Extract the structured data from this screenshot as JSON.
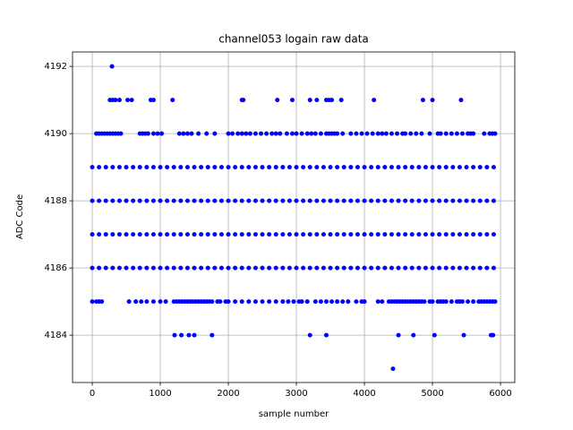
{
  "chart_data": {
    "type": "scatter",
    "title": "channel053 logain raw data",
    "x_label": "sample number",
    "y_label": "ADC Code",
    "color": "#0000ff",
    "grid": true,
    "xlim": [
      -290,
      6210
    ],
    "ylim": [
      4182.59,
      4192.43
    ],
    "xticks": [
      0,
      1000,
      2000,
      3000,
      4000,
      5000,
      6000
    ],
    "yticks": [
      4184,
      4186,
      4188,
      4190,
      4192
    ],
    "x": [
      290,
      260,
      300,
      340,
      400,
      520,
      580,
      860,
      900,
      1180,
      2200,
      2220,
      2720,
      2940,
      3200,
      3300,
      3440,
      3480,
      3520,
      3660,
      4140,
      4860,
      5000,
      5420,
      60,
      100,
      140,
      180,
      220,
      260,
      300,
      340,
      380,
      420,
      700,
      740,
      780,
      820,
      900,
      960,
      1020,
      1280,
      1340,
      1400,
      1460,
      1560,
      1680,
      1800,
      2000,
      2060,
      2140,
      2200,
      2260,
      2320,
      2400,
      2480,
      2560,
      2640,
      2700,
      2760,
      2860,
      2940,
      3000,
      3080,
      3160,
      3220,
      3280,
      3360,
      3440,
      3480,
      3520,
      3560,
      3600,
      3680,
      3800,
      3880,
      3960,
      4040,
      4120,
      4200,
      4260,
      4320,
      4400,
      4480,
      4560,
      4600,
      4680,
      4760,
      4840,
      4960,
      5080,
      5120,
      5200,
      5280,
      5360,
      5440,
      5520,
      5560,
      5600,
      5760,
      5840,
      5880,
      5920,
      0,
      100,
      200,
      300,
      400,
      500,
      600,
      700,
      800,
      900,
      1000,
      1100,
      1200,
      1300,
      1400,
      1500,
      1600,
      1700,
      1800,
      1900,
      2000,
      2100,
      2200,
      2300,
      2400,
      2500,
      2600,
      2700,
      2800,
      2900,
      3000,
      3100,
      3200,
      3300,
      3400,
      3500,
      3600,
      3700,
      3800,
      3900,
      4000,
      4100,
      4200,
      4300,
      4400,
      4500,
      4600,
      4700,
      4800,
      4900,
      5000,
      5100,
      5200,
      5300,
      5400,
      5500,
      5600,
      5700,
      5800,
      5900,
      0,
      100,
      200,
      300,
      400,
      500,
      600,
      700,
      800,
      900,
      1000,
      1100,
      1200,
      1300,
      1400,
      1500,
      1600,
      1700,
      1800,
      1900,
      2000,
      2100,
      2200,
      2300,
      2400,
      2500,
      2600,
      2700,
      2800,
      2900,
      3000,
      3100,
      3200,
      3300,
      3400,
      3500,
      3600,
      3700,
      3800,
      3900,
      4000,
      4100,
      4200,
      4300,
      4400,
      4500,
      4600,
      4700,
      4800,
      4900,
      5000,
      5100,
      5200,
      5300,
      5400,
      5500,
      5600,
      5700,
      5800,
      5900,
      0,
      100,
      200,
      300,
      400,
      500,
      600,
      700,
      800,
      900,
      1000,
      1100,
      1200,
      1300,
      1400,
      1500,
      1600,
      1700,
      1800,
      1900,
      2000,
      2100,
      2200,
      2300,
      2400,
      2500,
      2600,
      2700,
      2800,
      2900,
      3000,
      3100,
      3200,
      3300,
      3400,
      3500,
      3600,
      3700,
      3800,
      3900,
      4000,
      4100,
      4200,
      4300,
      4400,
      4500,
      4600,
      4700,
      4800,
      4900,
      5000,
      5100,
      5200,
      5300,
      5400,
      5500,
      5600,
      5700,
      5800,
      5900,
      0,
      100,
      200,
      300,
      400,
      500,
      600,
      700,
      800,
      900,
      1000,
      1100,
      1200,
      1300,
      1400,
      1500,
      1600,
      1700,
      1800,
      1900,
      2000,
      2100,
      2200,
      2300,
      2400,
      2500,
      2600,
      2700,
      2800,
      2900,
      3000,
      3100,
      3200,
      3300,
      3400,
      3500,
      3600,
      3700,
      3800,
      3900,
      4000,
      4100,
      4200,
      4300,
      4400,
      4500,
      4600,
      4700,
      4800,
      4900,
      5000,
      5100,
      5200,
      5300,
      5400,
      5500,
      5600,
      5700,
      5800,
      5900,
      0,
      60,
      100,
      140,
      540,
      640,
      720,
      800,
      900,
      1000,
      1080,
      1200,
      1240,
      1280,
      1320,
      1360,
      1400,
      1440,
      1480,
      1520,
      1560,
      1600,
      1640,
      1680,
      1720,
      1760,
      1840,
      1880,
      1960,
      2000,
      2100,
      2200,
      2300,
      2400,
      2500,
      2600,
      2700,
      2800,
      2880,
      2960,
      3040,
      3080,
      3160,
      3280,
      3360,
      3440,
      3520,
      3600,
      3680,
      3760,
      3880,
      3960,
      4000,
      4200,
      4260,
      4360,
      4400,
      4440,
      4480,
      4520,
      4560,
      4600,
      4640,
      4680,
      4720,
      4760,
      4800,
      4840,
      4880,
      4960,
      5000,
      5080,
      5120,
      5160,
      5200,
      5280,
      5360,
      5400,
      5440,
      5520,
      5600,
      5680,
      5720,
      5760,
      5800,
      5840,
      5880,
      5920,
      1210,
      1310,
      1420,
      1500,
      1760,
      3200,
      3440,
      4500,
      4720,
      5030,
      5460,
      5860,
      5890,
      4420
    ],
    "values": [
      4192,
      4191,
      4191,
      4191,
      4191,
      4191,
      4191,
      4191,
      4191,
      4191,
      4191,
      4191,
      4191,
      4191,
      4191,
      4191,
      4191,
      4191,
      4191,
      4191,
      4191,
      4191,
      4191,
      4191,
      4190,
      4190,
      4190,
      4190,
      4190,
      4190,
      4190,
      4190,
      4190,
      4190,
      4190,
      4190,
      4190,
      4190,
      4190,
      4190,
      4190,
      4190,
      4190,
      4190,
      4190,
      4190,
      4190,
      4190,
      4190,
      4190,
      4190,
      4190,
      4190,
      4190,
      4190,
      4190,
      4190,
      4190,
      4190,
      4190,
      4190,
      4190,
      4190,
      4190,
      4190,
      4190,
      4190,
      4190,
      4190,
      4190,
      4190,
      4190,
      4190,
      4190,
      4190,
      4190,
      4190,
      4190,
      4190,
      4190,
      4190,
      4190,
      4190,
      4190,
      4190,
      4190,
      4190,
      4190,
      4190,
      4190,
      4190,
      4190,
      4190,
      4190,
      4190,
      4190,
      4190,
      4190,
      4190,
      4190,
      4190,
      4190,
      4190,
      4189,
      4189,
      4189,
      4189,
      4189,
      4189,
      4189,
      4189,
      4189,
      4189,
      4189,
      4189,
      4189,
      4189,
      4189,
      4189,
      4189,
      4189,
      4189,
      4189,
      4189,
      4189,
      4189,
      4189,
      4189,
      4189,
      4189,
      4189,
      4189,
      4189,
      4189,
      4189,
      4189,
      4189,
      4189,
      4189,
      4189,
      4189,
      4189,
      4189,
      4189,
      4189,
      4189,
      4189,
      4189,
      4189,
      4189,
      4189,
      4189,
      4189,
      4189,
      4189,
      4189,
      4189,
      4189,
      4189,
      4189,
      4189,
      4189,
      4189,
      4188,
      4188,
      4188,
      4188,
      4188,
      4188,
      4188,
      4188,
      4188,
      4188,
      4188,
      4188,
      4188,
      4188,
      4188,
      4188,
      4188,
      4188,
      4188,
      4188,
      4188,
      4188,
      4188,
      4188,
      4188,
      4188,
      4188,
      4188,
      4188,
      4188,
      4188,
      4188,
      4188,
      4188,
      4188,
      4188,
      4188,
      4188,
      4188,
      4188,
      4188,
      4188,
      4188,
      4188,
      4188,
      4188,
      4188,
      4188,
      4188,
      4188,
      4188,
      4188,
      4188,
      4188,
      4188,
      4188,
      4188,
      4188,
      4188,
      4188,
      4187,
      4187,
      4187,
      4187,
      4187,
      4187,
      4187,
      4187,
      4187,
      4187,
      4187,
      4187,
      4187,
      4187,
      4187,
      4187,
      4187,
      4187,
      4187,
      4187,
      4187,
      4187,
      4187,
      4187,
      4187,
      4187,
      4187,
      4187,
      4187,
      4187,
      4187,
      4187,
      4187,
      4187,
      4187,
      4187,
      4187,
      4187,
      4187,
      4187,
      4187,
      4187,
      4187,
      4187,
      4187,
      4187,
      4187,
      4187,
      4187,
      4187,
      4187,
      4187,
      4187,
      4187,
      4187,
      4187,
      4187,
      4187,
      4187,
      4187,
      4186,
      4186,
      4186,
      4186,
      4186,
      4186,
      4186,
      4186,
      4186,
      4186,
      4186,
      4186,
      4186,
      4186,
      4186,
      4186,
      4186,
      4186,
      4186,
      4186,
      4186,
      4186,
      4186,
      4186,
      4186,
      4186,
      4186,
      4186,
      4186,
      4186,
      4186,
      4186,
      4186,
      4186,
      4186,
      4186,
      4186,
      4186,
      4186,
      4186,
      4186,
      4186,
      4186,
      4186,
      4186,
      4186,
      4186,
      4186,
      4186,
      4186,
      4186,
      4186,
      4186,
      4186,
      4186,
      4186,
      4186,
      4186,
      4186,
      4186,
      4185,
      4185,
      4185,
      4185,
      4185,
      4185,
      4185,
      4185,
      4185,
      4185,
      4185,
      4185,
      4185,
      4185,
      4185,
      4185,
      4185,
      4185,
      4185,
      4185,
      4185,
      4185,
      4185,
      4185,
      4185,
      4185,
      4185,
      4185,
      4185,
      4185,
      4185,
      4185,
      4185,
      4185,
      4185,
      4185,
      4185,
      4185,
      4185,
      4185,
      4185,
      4185,
      4185,
      4185,
      4185,
      4185,
      4185,
      4185,
      4185,
      4185,
      4185,
      4185,
      4185,
      4185,
      4185,
      4185,
      4185,
      4185,
      4185,
      4185,
      4185,
      4185,
      4185,
      4185,
      4185,
      4185,
      4185,
      4185,
      4185,
      4185,
      4185,
      4185,
      4185,
      4185,
      4185,
      4185,
      4185,
      4185,
      4185,
      4185,
      4185,
      4185,
      4185,
      4185,
      4185,
      4185,
      4185,
      4185,
      4184,
      4184,
      4184,
      4184,
      4184,
      4184,
      4184,
      4184,
      4184,
      4184,
      4184,
      4184,
      4184,
      4183
    ]
  }
}
